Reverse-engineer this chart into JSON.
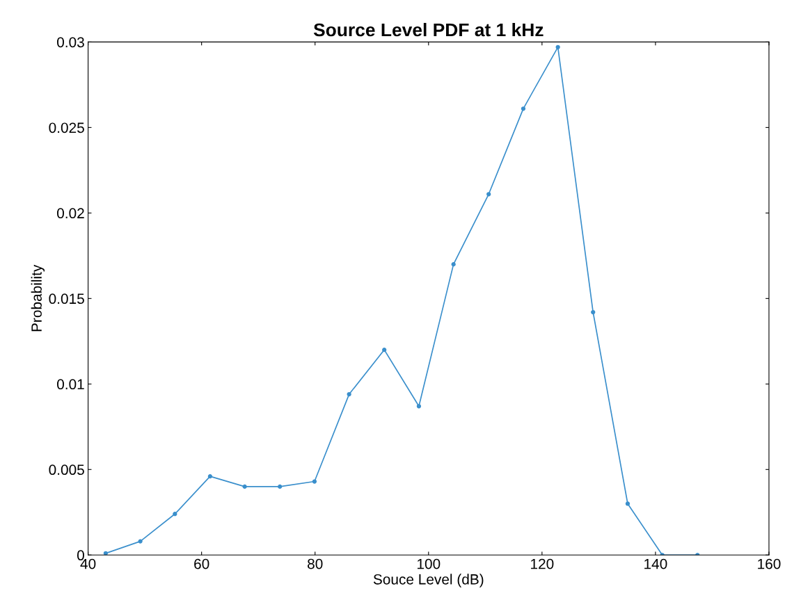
{
  "chart_data": {
    "type": "line",
    "title": "Source Level PDF at 1 kHz",
    "xlabel": "Souce Level (dB)",
    "ylabel": "Probability",
    "x": [
      43.1,
      49.2,
      55.3,
      61.5,
      67.6,
      73.8,
      79.9,
      86.0,
      92.2,
      98.3,
      104.4,
      110.6,
      116.7,
      122.8,
      129.0,
      135.1,
      141.2,
      147.4
    ],
    "series": [
      {
        "color": "#3a8fcc",
        "values": [
          0.0001,
          0.0008,
          0.0024,
          0.0046,
          0.004,
          0.004,
          0.0043,
          0.0094,
          0.012,
          0.0087,
          0.017,
          0.0211,
          0.0261,
          0.0297,
          0.0142,
          0.003,
          0.0,
          0.0
        ]
      }
    ],
    "xlim": [
      40,
      160
    ],
    "xticks": [
      40,
      60,
      80,
      100,
      120,
      140,
      160
    ],
    "ylim": [
      0,
      0.03
    ],
    "yticks": [
      0,
      0.005,
      0.01,
      0.015,
      0.02,
      0.025,
      0.03
    ],
    "marker": "circle",
    "line_style": "solid",
    "grid": false,
    "legend": false
  }
}
